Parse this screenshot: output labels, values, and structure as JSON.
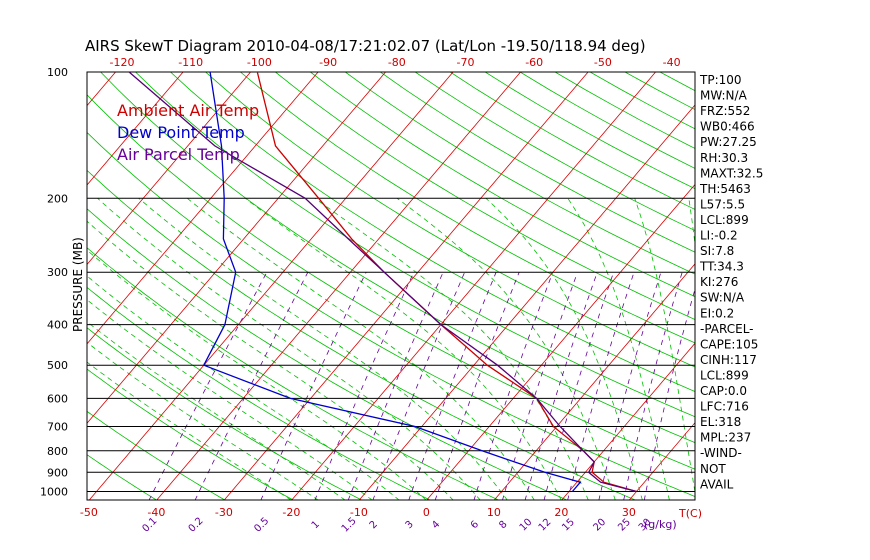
{
  "chart_data": {
    "type": "line",
    "title": "AIRS SkewT Diagram 2010-04-08/17:21:02.07 (Lat/Lon -19.50/118.94 deg)",
    "ylabel": "PRESSURE (MB)",
    "y_scale": "log",
    "ylim": [
      1050,
      100
    ],
    "pressure_ticks": [
      100,
      200,
      300,
      400,
      500,
      600,
      700,
      800,
      900,
      1000
    ],
    "temperature_ticks_bottom": [
      "-50",
      "-40",
      "-30",
      "-20",
      "-10",
      "0",
      "10",
      "20",
      "30"
    ],
    "temperature_ticks_top": [
      "-120",
      "-110",
      "-100",
      "-90",
      "-80",
      "-70",
      "-60",
      "-50",
      "-40"
    ],
    "temperature_unit_label": "T(C)",
    "mixing_ratio_ticks": [
      "0.1",
      "0.2",
      "0.5",
      "1",
      "1.5",
      "2",
      "3",
      "4",
      "6",
      "8",
      "10",
      "12",
      "15",
      "20",
      "25",
      "30"
    ],
    "mixing_ratio_unit_label": "(g/kg)",
    "legend": [
      {
        "label": "Ambient Air Temp",
        "color": "#cc0000"
      },
      {
        "label": "Dew Point Temp",
        "color": "#0000cc"
      },
      {
        "label": "Air Parcel Temp",
        "color": "#550077"
      }
    ],
    "series": [
      {
        "name": "Ambient Air Temp",
        "color": "#cc0000",
        "points": [
          [
            1000,
            30
          ],
          [
            950,
            24
          ],
          [
            900,
            21
          ],
          [
            850,
            20
          ],
          [
            800,
            17
          ],
          [
            700,
            9.5
          ],
          [
            600,
            3.5
          ],
          [
            500,
            -8
          ],
          [
            400,
            -20
          ],
          [
            300,
            -35
          ],
          [
            250,
            -44
          ],
          [
            200,
            -54
          ],
          [
            150,
            -67
          ],
          [
            100,
            -79
          ]
        ]
      },
      {
        "name": "Dew Point Temp",
        "color": "#0000cc",
        "points": [
          [
            1000,
            20.5
          ],
          [
            950,
            20.5
          ],
          [
            900,
            14
          ],
          [
            800,
            2
          ],
          [
            700,
            -11
          ],
          [
            600,
            -33
          ],
          [
            500,
            -50
          ],
          [
            400,
            -52
          ],
          [
            300,
            -57
          ],
          [
            250,
            -63
          ],
          [
            200,
            -68
          ],
          [
            150,
            -75
          ],
          [
            100,
            -86
          ]
        ]
      },
      {
        "name": "Air Parcel Temp",
        "color": "#550077",
        "points": [
          [
            1000,
            30
          ],
          [
            950,
            23.5
          ],
          [
            900,
            20.5
          ],
          [
            850,
            20
          ],
          [
            800,
            17
          ],
          [
            700,
            10.5
          ],
          [
            600,
            3.5
          ],
          [
            500,
            -6.5
          ],
          [
            400,
            -20
          ],
          [
            300,
            -35
          ],
          [
            250,
            -44.5
          ],
          [
            200,
            -56
          ],
          [
            150,
            -76
          ],
          [
            100,
            -98
          ]
        ]
      }
    ],
    "indices": [
      "TP:100",
      "MW:N/A",
      "FRZ:552",
      "WB0:466",
      "PW:27.25",
      "RH:30.3",
      "MAXT:32.5",
      "TH:5463",
      "L57:5.5",
      "LCL:899",
      "LI:-0.2",
      "SI:7.8",
      "TT:34.3",
      "KI:276",
      "SW:N/A",
      "EI:0.2",
      "-PARCEL-",
      "CAPE:105",
      "CINH:117",
      "LCL:899",
      "CAP:0.0",
      "LFC:716",
      "EL:318",
      "MPL:237",
      "-WIND-",
      "NOT",
      "AVAIL"
    ]
  }
}
